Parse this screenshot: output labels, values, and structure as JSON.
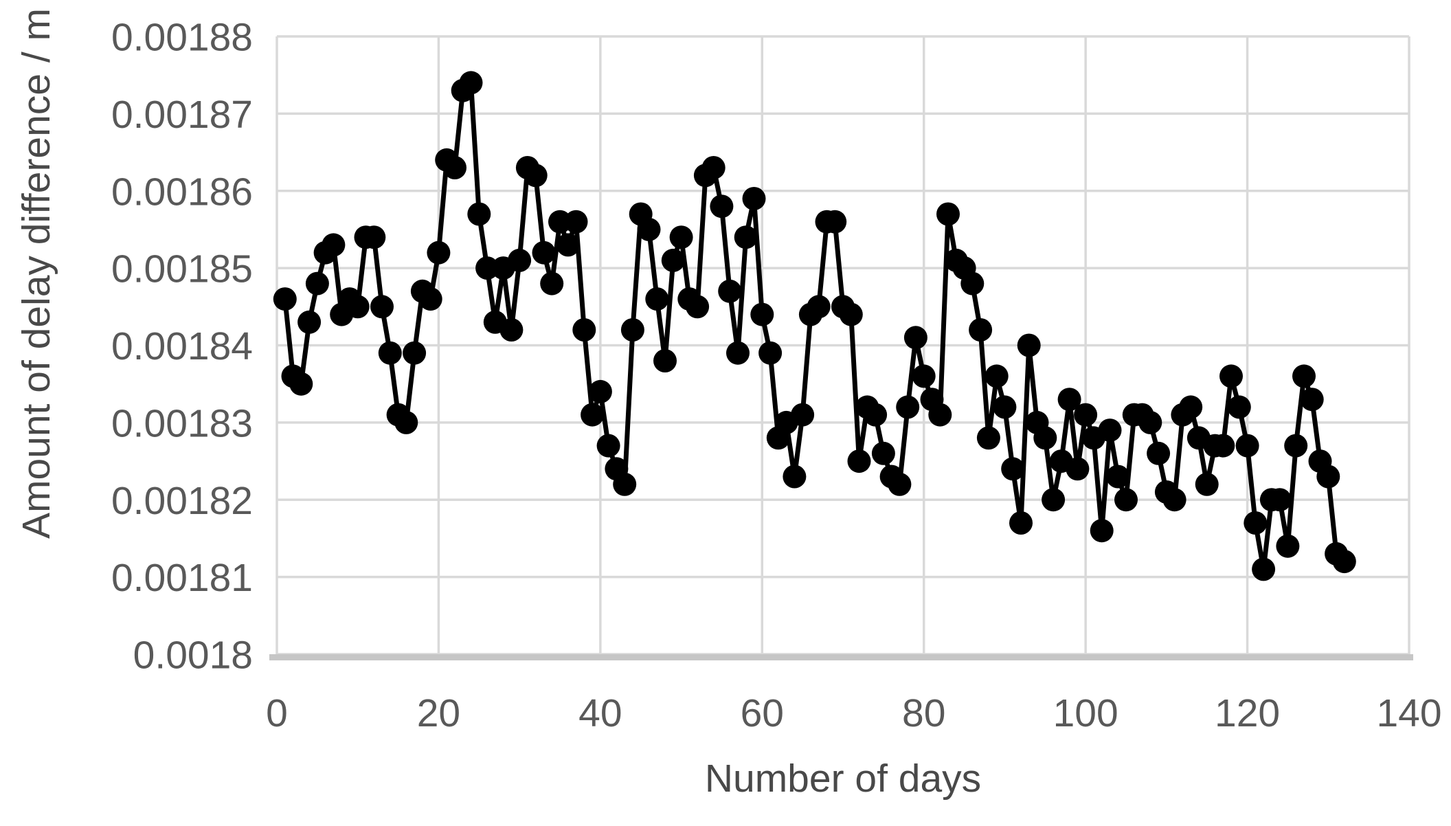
{
  "chart_data": {
    "type": "line",
    "title": "",
    "xlabel": "Number of days",
    "ylabel": "Amount of delay difference / m",
    "legend": "none",
    "grid": "both",
    "xlim": [
      0,
      140
    ],
    "ylim": [
      0.0018,
      0.00188
    ],
    "x_ticks": [
      0,
      20,
      40,
      60,
      80,
      100,
      120,
      140
    ],
    "x_tick_labels": [
      "0",
      "20",
      "40",
      "60",
      "80",
      "100",
      "120",
      "140"
    ],
    "y_ticks": [
      0.0018,
      0.00181,
      0.00182,
      0.00183,
      0.00184,
      0.00185,
      0.00186,
      0.00187,
      0.00188
    ],
    "y_tick_labels": [
      "0.0018",
      "0.00181",
      "0.00182",
      "0.00183",
      "0.00184",
      "0.00185",
      "0.00186",
      "0.00187",
      "0.00188"
    ],
    "x_start": 1,
    "x_step": 1,
    "n_points": 132,
    "series": [
      {
        "name": "Amount of delay difference",
        "marker": "circle",
        "color": "#000000",
        "values": [
          0.001846,
          0.001836,
          0.001835,
          0.001843,
          0.001848,
          0.001852,
          0.001853,
          0.001844,
          0.001846,
          0.001845,
          0.001854,
          0.001854,
          0.001845,
          0.001839,
          0.001831,
          0.00183,
          0.001839,
          0.001847,
          0.001846,
          0.001852,
          0.001864,
          0.001863,
          0.001873,
          0.001874,
          0.001857,
          0.00185,
          0.001843,
          0.00185,
          0.001842,
          0.001851,
          0.001863,
          0.001862,
          0.001852,
          0.001848,
          0.001856,
          0.001853,
          0.001856,
          0.001842,
          0.001831,
          0.001834,
          0.001827,
          0.001824,
          0.001822,
          0.001842,
          0.001857,
          0.001855,
          0.001846,
          0.001838,
          0.001851,
          0.001854,
          0.001846,
          0.001845,
          0.001862,
          0.001863,
          0.001858,
          0.001847,
          0.001839,
          0.001854,
          0.001859,
          0.001844,
          0.001839,
          0.001828,
          0.00183,
          0.001823,
          0.001831,
          0.001844,
          0.001845,
          0.001856,
          0.001856,
          0.001845,
          0.001844,
          0.001825,
          0.001832,
          0.001831,
          0.001826,
          0.001823,
          0.001822,
          0.001832,
          0.001841,
          0.001836,
          0.001833,
          0.001831,
          0.001857,
          0.001851,
          0.00185,
          0.001848,
          0.001842,
          0.001828,
          0.001836,
          0.001832,
          0.001824,
          0.001817,
          0.00184,
          0.00183,
          0.001828,
          0.00182,
          0.001825,
          0.001833,
          0.001824,
          0.001831,
          0.001828,
          0.001816,
          0.001829,
          0.001823,
          0.00182,
          0.001831,
          0.001831,
          0.00183,
          0.001826,
          0.001821,
          0.00182,
          0.001831,
          0.001832,
          0.001828,
          0.001822,
          0.001827,
          0.001827,
          0.001836,
          0.001832,
          0.001827,
          0.001817,
          0.001811,
          0.00182,
          0.00182,
          0.001814,
          0.001827,
          0.001836,
          0.001833,
          0.001825,
          0.001823,
          0.001813,
          0.001812
        ]
      }
    ],
    "colors": {
      "background": "#ffffff",
      "grid": "#d9d9d9",
      "axis_line": "#c6c6c6",
      "tick_label": "#595959",
      "axis_title": "#494949",
      "series": "#000000"
    }
  }
}
